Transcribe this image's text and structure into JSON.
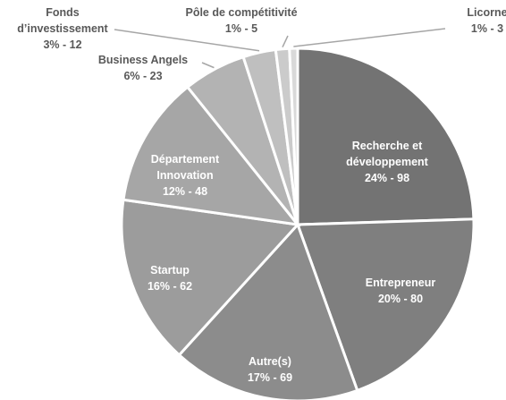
{
  "chart_data": {
    "type": "pie",
    "categories": [
      "Recherche et développement",
      "Entrepreneur",
      "Autre(s)",
      "Startup",
      "Département Innovation",
      "Business Angels",
      "Fonds d’investissement",
      "Pôle de compétitivité",
      "Licorne"
    ],
    "values": [
      98,
      80,
      69,
      62,
      48,
      23,
      12,
      5,
      3
    ],
    "value_labels": [
      "24% - 98",
      "20% - 80",
      "17% - 69",
      "16% - 62",
      "12% - 48",
      "6% - 23",
      "3% - 12",
      "1% - 5",
      "1% - 3"
    ],
    "colors": [
      "#737373",
      "#7f7f7f",
      "#8c8c8c",
      "#9c9c9c",
      "#a6a6a6",
      "#b3b3b3",
      "#bfbfbf",
      "#cbcbcb",
      "#d9d9d9"
    ]
  }
}
